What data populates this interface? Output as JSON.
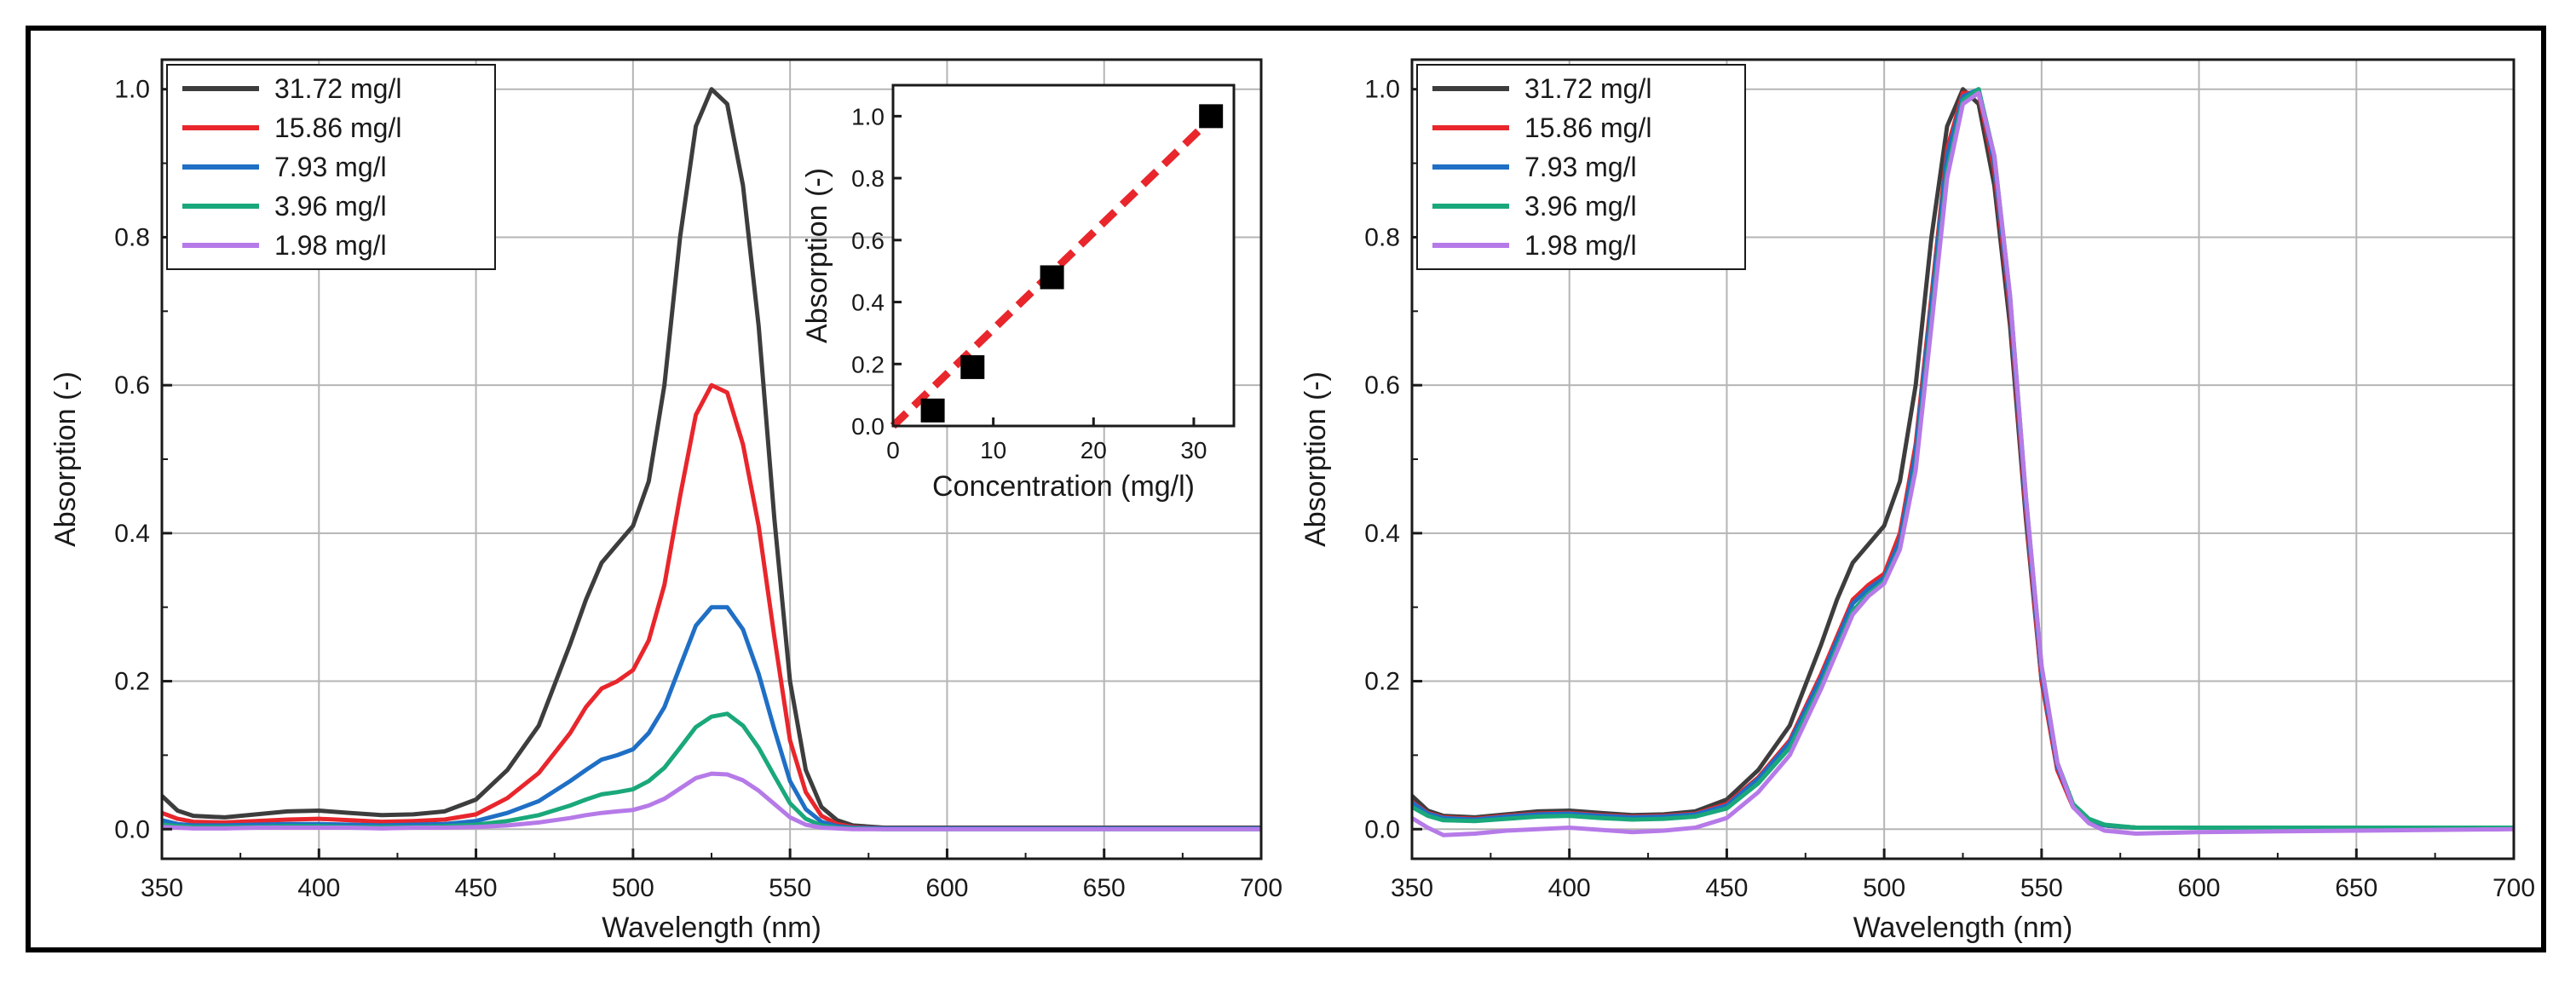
{
  "chart_data": [
    {
      "type": "line",
      "panel": "left",
      "xlabel": "Wavelength (nm)",
      "ylabel": "Absorption (-)",
      "xlim": [
        350,
        700
      ],
      "ylim": [
        -0.04,
        1.04
      ],
      "xticks": [
        350,
        400,
        450,
        500,
        550,
        600,
        650,
        700
      ],
      "yticks": [
        0.0,
        0.2,
        0.4,
        0.6,
        0.8,
        1.0
      ],
      "grid": true,
      "legend_position": "top-left",
      "x": [
        350,
        355,
        360,
        370,
        380,
        390,
        400,
        410,
        420,
        430,
        440,
        450,
        460,
        470,
        480,
        485,
        490,
        495,
        500,
        505,
        510,
        515,
        520,
        525,
        530,
        535,
        540,
        545,
        550,
        555,
        560,
        565,
        570,
        580,
        600,
        650,
        700
      ],
      "series": [
        {
          "name": "31.72 mg/l",
          "color": "#3d3d3d",
          "values": [
            0.045,
            0.025,
            0.018,
            0.016,
            0.02,
            0.024,
            0.025,
            0.022,
            0.019,
            0.02,
            0.024,
            0.04,
            0.08,
            0.14,
            0.25,
            0.31,
            0.36,
            0.385,
            0.41,
            0.47,
            0.6,
            0.8,
            0.95,
            1.0,
            0.98,
            0.87,
            0.68,
            0.42,
            0.2,
            0.08,
            0.03,
            0.012,
            0.005,
            0.002,
            0.002,
            0.002,
            0.002
          ]
        },
        {
          "name": "15.86 mg/l",
          "color": "#e8262c",
          "values": [
            0.022,
            0.014,
            0.01,
            0.009,
            0.011,
            0.013,
            0.014,
            0.012,
            0.01,
            0.011,
            0.013,
            0.02,
            0.042,
            0.076,
            0.13,
            0.165,
            0.19,
            0.2,
            0.215,
            0.255,
            0.33,
            0.45,
            0.56,
            0.6,
            0.59,
            0.52,
            0.41,
            0.26,
            0.12,
            0.05,
            0.018,
            0.007,
            0.003,
            0.001,
            0.001,
            0.001,
            0.001
          ]
        },
        {
          "name": "7.93 mg/l",
          "color": "#1f6fc5",
          "values": [
            0.012,
            0.007,
            0.005,
            0.005,
            0.006,
            0.007,
            0.007,
            0.006,
            0.005,
            0.006,
            0.007,
            0.011,
            0.022,
            0.038,
            0.065,
            0.08,
            0.094,
            0.1,
            0.108,
            0.13,
            0.165,
            0.22,
            0.275,
            0.3,
            0.3,
            0.27,
            0.21,
            0.135,
            0.065,
            0.027,
            0.01,
            0.004,
            0.002,
            0.001,
            0.001,
            0.001,
            0.001
          ]
        },
        {
          "name": "3.96 mg/l",
          "color": "#1aa87b",
          "values": [
            0.006,
            0.004,
            0.003,
            0.003,
            0.003,
            0.004,
            0.004,
            0.003,
            0.003,
            0.003,
            0.004,
            0.006,
            0.011,
            0.019,
            0.032,
            0.04,
            0.047,
            0.05,
            0.054,
            0.065,
            0.083,
            0.11,
            0.138,
            0.152,
            0.156,
            0.14,
            0.11,
            0.072,
            0.035,
            0.014,
            0.005,
            0.002,
            0.001,
            0.0,
            0.0,
            0.0,
            0.0
          ]
        },
        {
          "name": "1.98 mg/l",
          "color": "#b67ae8",
          "values": [
            0.003,
            0.002,
            0.001,
            0.001,
            0.002,
            0.002,
            0.002,
            0.002,
            0.001,
            0.002,
            0.002,
            0.003,
            0.005,
            0.009,
            0.015,
            0.019,
            0.022,
            0.024,
            0.026,
            0.032,
            0.041,
            0.055,
            0.069,
            0.075,
            0.074,
            0.066,
            0.052,
            0.034,
            0.016,
            0.006,
            0.002,
            0.001,
            0.0,
            0.0,
            0.0,
            0.0,
            0.0
          ]
        }
      ]
    },
    {
      "type": "scatter",
      "panel": "inset",
      "xlabel": "Concentration (mg/l)",
      "ylabel": "Absorption (-)",
      "xlim": [
        0,
        34
      ],
      "ylim": [
        0,
        1.1
      ],
      "xticks": [
        0,
        10,
        20,
        30
      ],
      "yticks": [
        0.0,
        0.2,
        0.4,
        0.6,
        0.8,
        1.0
      ],
      "points": {
        "x": [
          3.96,
          7.93,
          15.86,
          31.72
        ],
        "y": [
          0.05,
          0.19,
          0.48,
          1.0
        ]
      },
      "point_color": "#000000",
      "fit_line": {
        "x": [
          0,
          32
        ],
        "y": [
          0.0,
          1.0
        ],
        "color": "#e8262c",
        "style": "dashed"
      }
    },
    {
      "type": "line",
      "panel": "right",
      "xlabel": "Wavelength (nm)",
      "ylabel": "Absorption (-)",
      "xlim": [
        350,
        700
      ],
      "ylim": [
        -0.04,
        1.04
      ],
      "xticks": [
        350,
        400,
        450,
        500,
        550,
        600,
        650,
        700
      ],
      "yticks": [
        0.0,
        0.2,
        0.4,
        0.6,
        0.8,
        1.0
      ],
      "grid": true,
      "legend_position": "top-left",
      "x": [
        350,
        355,
        360,
        370,
        380,
        390,
        400,
        410,
        420,
        430,
        440,
        450,
        460,
        470,
        480,
        485,
        490,
        495,
        500,
        505,
        510,
        515,
        520,
        525,
        530,
        535,
        540,
        545,
        550,
        555,
        560,
        565,
        570,
        580,
        600,
        650,
        700
      ],
      "series": [
        {
          "name": "31.72 mg/l",
          "color": "#3d3d3d",
          "values": [
            0.045,
            0.025,
            0.018,
            0.016,
            0.02,
            0.024,
            0.025,
            0.022,
            0.019,
            0.02,
            0.024,
            0.04,
            0.08,
            0.14,
            0.25,
            0.31,
            0.36,
            0.385,
            0.41,
            0.47,
            0.6,
            0.8,
            0.95,
            1.0,
            0.98,
            0.87,
            0.68,
            0.42,
            0.2,
            0.08,
            0.03,
            0.012,
            0.005,
            0.002,
            0.002,
            0.002,
            0.002
          ]
        },
        {
          "name": "15.86 mg/l",
          "color": "#e8262c",
          "values": [
            0.037,
            0.022,
            0.016,
            0.014,
            0.018,
            0.021,
            0.022,
            0.019,
            0.017,
            0.018,
            0.021,
            0.034,
            0.07,
            0.12,
            0.21,
            0.26,
            0.31,
            0.33,
            0.345,
            0.4,
            0.52,
            0.72,
            0.92,
            0.995,
            0.995,
            0.89,
            0.7,
            0.43,
            0.2,
            0.08,
            0.03,
            0.012,
            0.005,
            0.002,
            0.002,
            0.002,
            0.002
          ]
        },
        {
          "name": "7.93 mg/l",
          "color": "#1f6fc5",
          "values": [
            0.036,
            0.021,
            0.015,
            0.013,
            0.017,
            0.02,
            0.021,
            0.018,
            0.016,
            0.017,
            0.02,
            0.032,
            0.068,
            0.117,
            0.205,
            0.255,
            0.305,
            0.325,
            0.34,
            0.39,
            0.51,
            0.71,
            0.91,
            0.99,
            1.0,
            0.9,
            0.71,
            0.44,
            0.21,
            0.085,
            0.032,
            0.013,
            0.005,
            0.002,
            0.002,
            0.002,
            0.002
          ]
        },
        {
          "name": "3.96 mg/l",
          "color": "#1aa87b",
          "values": [
            0.03,
            0.018,
            0.012,
            0.011,
            0.014,
            0.017,
            0.018,
            0.015,
            0.013,
            0.014,
            0.017,
            0.028,
            0.062,
            0.11,
            0.195,
            0.245,
            0.295,
            0.318,
            0.335,
            0.38,
            0.49,
            0.69,
            0.89,
            0.985,
            1.0,
            0.91,
            0.72,
            0.45,
            0.22,
            0.09,
            0.034,
            0.014,
            0.006,
            0.002,
            0.002,
            0.002,
            0.002
          ]
        },
        {
          "name": "1.98 mg/l",
          "color": "#b67ae8",
          "values": [
            0.015,
            0.002,
            -0.008,
            -0.006,
            -0.002,
            0.0,
            0.002,
            -0.001,
            -0.004,
            -0.002,
            0.002,
            0.015,
            0.05,
            0.1,
            0.19,
            0.24,
            0.29,
            0.315,
            0.332,
            0.378,
            0.485,
            0.68,
            0.88,
            0.98,
            0.995,
            0.91,
            0.72,
            0.45,
            0.22,
            0.09,
            0.03,
            0.008,
            -0.002,
            -0.006,
            -0.004,
            -0.002,
            0.0
          ]
        }
      ]
    }
  ]
}
